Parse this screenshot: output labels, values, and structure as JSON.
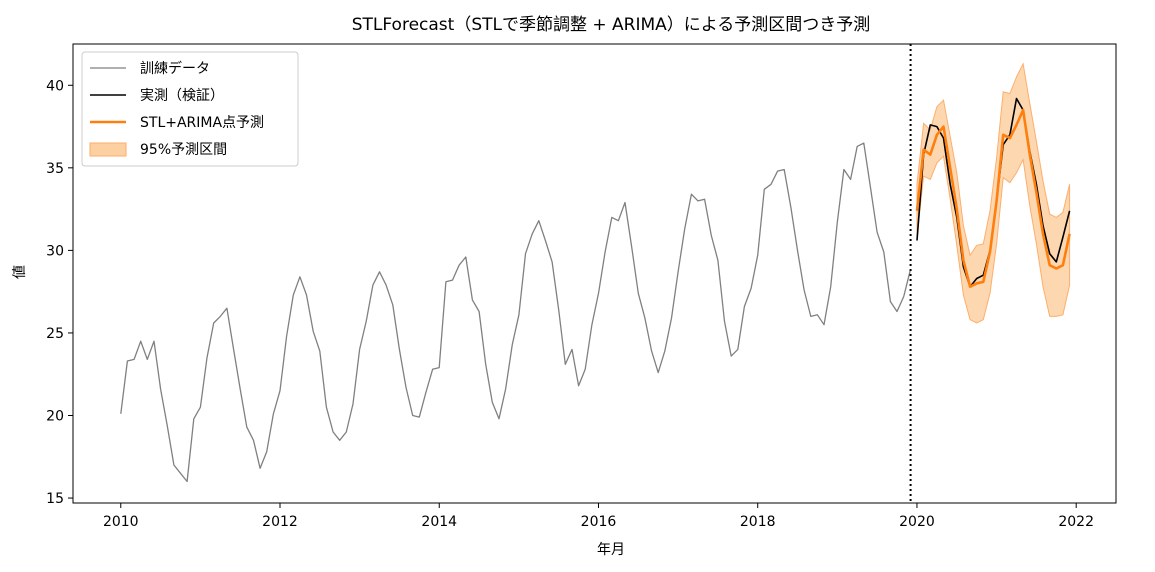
{
  "chart_data": {
    "type": "line",
    "title": "STLForecast（STLで季節調整 + ARIMA）による予測区間つき予測",
    "xlabel": "年月",
    "ylabel": "値",
    "xlim": [
      2009.4,
      2022.5
    ],
    "ylim": [
      14.7,
      42.5
    ],
    "xticks": [
      2010,
      2012,
      2014,
      2016,
      2018,
      2020,
      2022
    ],
    "xtick_labels": [
      "2010",
      "2012",
      "2014",
      "2016",
      "2018",
      "2020",
      "2022"
    ],
    "yticks": [
      15,
      20,
      25,
      30,
      35,
      40
    ],
    "ytick_labels": [
      "15",
      "20",
      "25",
      "30",
      "35",
      "40"
    ],
    "grid": false,
    "legend_position": "top-left",
    "forecast_start_line": {
      "x": 2019.92,
      "style": "dotted",
      "color": "#000000"
    },
    "series": [
      {
        "name": "訓練データ",
        "color": "#808080",
        "x": [
          2010.0,
          2010.083,
          2010.167,
          2010.25,
          2010.333,
          2010.417,
          2010.5,
          2010.583,
          2010.667,
          2010.75,
          2010.833,
          2010.917,
          2011.0,
          2011.083,
          2011.167,
          2011.25,
          2011.333,
          2011.417,
          2011.5,
          2011.583,
          2011.667,
          2011.75,
          2011.833,
          2011.917,
          2012.0,
          2012.083,
          2012.167,
          2012.25,
          2012.333,
          2012.417,
          2012.5,
          2012.583,
          2012.667,
          2012.75,
          2012.833,
          2012.917,
          2013.0,
          2013.083,
          2013.167,
          2013.25,
          2013.333,
          2013.417,
          2013.5,
          2013.583,
          2013.667,
          2013.75,
          2013.833,
          2013.917,
          2014.0,
          2014.083,
          2014.167,
          2014.25,
          2014.333,
          2014.417,
          2014.5,
          2014.583,
          2014.667,
          2014.75,
          2014.833,
          2014.917,
          2015.0,
          2015.083,
          2015.167,
          2015.25,
          2015.333,
          2015.417,
          2015.5,
          2015.583,
          2015.667,
          2015.75,
          2015.833,
          2015.917,
          2016.0,
          2016.083,
          2016.167,
          2016.25,
          2016.333,
          2016.417,
          2016.5,
          2016.583,
          2016.667,
          2016.75,
          2016.833,
          2016.917,
          2017.0,
          2017.083,
          2017.167,
          2017.25,
          2017.333,
          2017.417,
          2017.5,
          2017.583,
          2017.667,
          2017.75,
          2017.833,
          2017.917,
          2018.0,
          2018.083,
          2018.167,
          2018.25,
          2018.333,
          2018.417,
          2018.5,
          2018.583,
          2018.667,
          2018.75,
          2018.833,
          2018.917,
          2019.0,
          2019.083,
          2019.167,
          2019.25,
          2019.333,
          2019.417,
          2019.5,
          2019.583,
          2019.667,
          2019.75,
          2019.833,
          2019.917
        ],
        "values": [
          20.1,
          23.3,
          23.4,
          24.5,
          23.4,
          24.5,
          21.6,
          19.4,
          17.0,
          16.5,
          16.0,
          19.8,
          20.5,
          23.5,
          25.6,
          26.0,
          26.5,
          24.0,
          21.6,
          19.3,
          18.5,
          16.8,
          17.8,
          20.1,
          21.5,
          24.8,
          27.3,
          28.4,
          27.3,
          25.1,
          23.9,
          20.5,
          19.0,
          18.5,
          19.0,
          20.7,
          24.0,
          25.7,
          27.9,
          28.7,
          27.9,
          26.7,
          24.0,
          21.7,
          20.0,
          19.9,
          21.4,
          22.8,
          22.9,
          28.1,
          28.2,
          29.1,
          29.6,
          27.0,
          26.3,
          23.1,
          20.8,
          19.8,
          21.6,
          24.3,
          26.1,
          29.8,
          31.0,
          31.8,
          30.6,
          29.3,
          26.4,
          23.1,
          24.0,
          21.8,
          22.8,
          25.5,
          27.4,
          29.9,
          32.0,
          31.8,
          32.9,
          30.2,
          27.4,
          25.9,
          23.9,
          22.6,
          23.9,
          25.9,
          28.7,
          31.3,
          33.4,
          33.0,
          33.1,
          30.9,
          29.4,
          25.7,
          23.6,
          24.0,
          26.6,
          27.7,
          29.7,
          33.7,
          34.0,
          34.8,
          34.9,
          32.6,
          30.0,
          27.6,
          26.0,
          26.1,
          25.5,
          27.8,
          31.7,
          34.9,
          34.3,
          36.3,
          36.5,
          33.8,
          31.1,
          29.9,
          26.9,
          26.3,
          27.2,
          28.8
        ]
      },
      {
        "name": "実測（検証）",
        "color": "#000000",
        "x": [
          2020.0,
          2020.083,
          2020.167,
          2020.25,
          2020.333,
          2020.417,
          2020.5,
          2020.583,
          2020.667,
          2020.75,
          2020.833,
          2020.917,
          2021.0,
          2021.083,
          2021.167,
          2021.25,
          2021.333,
          2021.417,
          2021.5,
          2021.583,
          2021.667,
          2021.75,
          2021.833,
          2021.917
        ],
        "values": [
          30.6,
          35.8,
          37.6,
          37.5,
          36.8,
          34.0,
          32.0,
          29.0,
          27.8,
          28.3,
          28.5,
          30.0,
          33.0,
          36.4,
          37.0,
          39.2,
          38.5,
          36.0,
          34.0,
          31.5,
          29.8,
          29.3,
          30.8,
          32.4
        ]
      },
      {
        "name": "STL+ARIMA点予測",
        "color": "#ff7f0e",
        "x": [
          2020.0,
          2020.083,
          2020.167,
          2020.25,
          2020.333,
          2020.417,
          2020.5,
          2020.583,
          2020.667,
          2020.75,
          2020.833,
          2020.917,
          2021.0,
          2021.083,
          2021.167,
          2021.25,
          2021.333,
          2021.417,
          2021.5,
          2021.583,
          2021.667,
          2021.75,
          2021.833,
          2021.917
        ],
        "values": [
          32.4,
          36.1,
          35.8,
          37.0,
          37.5,
          35.0,
          32.5,
          29.4,
          27.8,
          28.0,
          28.1,
          29.9,
          33.0,
          37.0,
          36.8,
          37.6,
          38.5,
          35.8,
          33.5,
          31.0,
          29.1,
          28.9,
          29.1,
          31.0
        ]
      }
    ],
    "interval": {
      "name": "95%予測区間",
      "color": "#fdd0a2",
      "edge_color": "#fdae6b",
      "x": [
        2020.0,
        2020.083,
        2020.167,
        2020.25,
        2020.333,
        2020.417,
        2020.5,
        2020.583,
        2020.667,
        2020.75,
        2020.833,
        2020.917,
        2021.0,
        2021.083,
        2021.167,
        2021.25,
        2021.333,
        2021.417,
        2021.5,
        2021.583,
        2021.667,
        2021.75,
        2021.833,
        2021.917
      ],
      "lower": [
        30.8,
        34.5,
        34.3,
        35.3,
        35.7,
        33.1,
        30.3,
        27.3,
        25.8,
        25.6,
        25.8,
        27.4,
        30.4,
        34.4,
        34.1,
        34.7,
        35.5,
        32.7,
        30.4,
        27.8,
        26.0,
        26.0,
        26.1,
        27.9
      ],
      "upper": [
        34.0,
        37.7,
        37.3,
        38.7,
        39.1,
        36.9,
        34.7,
        31.5,
        29.7,
        30.3,
        30.4,
        32.4,
        35.6,
        39.6,
        39.5,
        40.5,
        41.3,
        38.9,
        36.6,
        34.2,
        32.2,
        32.0,
        32.3,
        34.0
      ]
    }
  }
}
